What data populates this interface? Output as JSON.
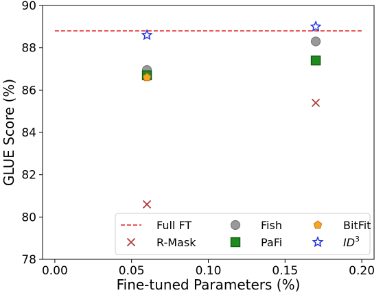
{
  "chart_data": {
    "type": "scatter",
    "xlabel": "Fine-tuned Parameters (%)",
    "ylabel": "GLUE Score (%)",
    "xlim": [
      -0.008,
      0.208
    ],
    "ylim": [
      78,
      90
    ],
    "xticks": [
      "0.00",
      "0.05",
      "0.10",
      "0.15",
      "0.20"
    ],
    "xtick_values": [
      0.0,
      0.05,
      0.1,
      0.15,
      0.2
    ],
    "yticks": [
      "78",
      "80",
      "82",
      "84",
      "86",
      "88",
      "90"
    ],
    "ytick_values": [
      78,
      80,
      82,
      84,
      86,
      88,
      90
    ],
    "grid": false,
    "legend_placement": "lower-right",
    "reference_line": {
      "name": "Full FT",
      "y": 88.8,
      "color": "#e0201b",
      "style": "dashed"
    },
    "series": [
      {
        "name": "R-Mask",
        "marker": "x",
        "color": "#b23a3a",
        "points": [
          {
            "x": 0.06,
            "y": 80.6
          },
          {
            "x": 0.17,
            "y": 85.4
          }
        ]
      },
      {
        "name": "Fish",
        "marker": "circle",
        "color": "#999999",
        "points": [
          {
            "x": 0.06,
            "y": 86.95
          },
          {
            "x": 0.17,
            "y": 88.3
          }
        ]
      },
      {
        "name": "PaFi",
        "marker": "square",
        "color": "#1f8a1f",
        "points": [
          {
            "x": 0.06,
            "y": 86.7
          },
          {
            "x": 0.17,
            "y": 87.4
          }
        ]
      },
      {
        "name": "BitFit",
        "marker": "pentagon",
        "color": "#f5a623",
        "points": [
          {
            "x": 0.06,
            "y": 86.6
          }
        ]
      },
      {
        "name": "ID",
        "name_sup": "3",
        "marker": "star",
        "color": "#2233dd",
        "points": [
          {
            "x": 0.06,
            "y": 88.6
          },
          {
            "x": 0.17,
            "y": 89.0
          }
        ]
      }
    ]
  }
}
